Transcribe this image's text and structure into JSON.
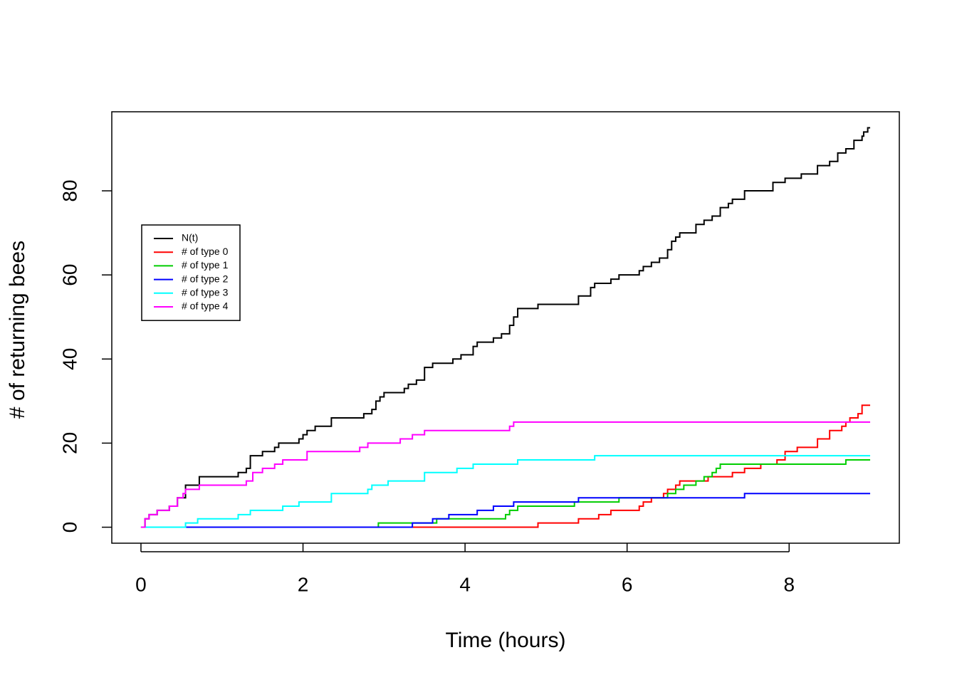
{
  "chart_data": {
    "type": "step",
    "xlabel": "Time (hours)",
    "ylabel": "# of returning bees",
    "xlim": [
      -0.36,
      9.36
    ],
    "ylim": [
      -3.8,
      98.8
    ],
    "xticks": [
      0,
      2,
      4,
      6,
      8
    ],
    "yticks": [
      0,
      20,
      40,
      60,
      80
    ],
    "grid": false,
    "legend": "left",
    "series": [
      {
        "name": "N(t)",
        "color": "#000000",
        "x": [
          0,
          0.05,
          0.1,
          0.2,
          0.35,
          0.45,
          0.55,
          0.72,
          1.2,
          1.3,
          1.35,
          1.5,
          1.65,
          1.7,
          1.95,
          2.0,
          2.05,
          2.15,
          2.35,
          2.75,
          2.85,
          2.9,
          2.95,
          3.0,
          3.25,
          3.3,
          3.4,
          3.5,
          3.6,
          3.85,
          3.95,
          4.1,
          4.15,
          4.35,
          4.45,
          4.55,
          4.6,
          4.65,
          4.9,
          5.4,
          5.55,
          5.6,
          5.8,
          5.9,
          6.15,
          6.2,
          6.3,
          6.4,
          6.5,
          6.55,
          6.6,
          6.65,
          6.85,
          6.95,
          7.05,
          7.15,
          7.25,
          7.3,
          7.45,
          7.8,
          7.95,
          8.15,
          8.35,
          8.5,
          8.6,
          8.7,
          8.8,
          8.9,
          8.92,
          8.97,
          9.0
        ],
        "values": [
          0,
          2,
          3,
          4,
          5,
          7,
          10,
          12,
          13,
          14,
          17,
          18,
          19,
          20,
          21,
          22,
          23,
          24,
          26,
          27,
          28,
          30,
          31,
          32,
          33,
          34,
          35,
          38,
          39,
          40,
          41,
          43,
          44,
          45,
          46,
          48,
          50,
          52,
          53,
          55,
          57,
          58,
          59,
          60,
          61,
          62,
          63,
          64,
          66,
          68,
          69,
          70,
          72,
          73,
          74,
          76,
          77,
          78,
          80,
          82,
          83,
          84,
          86,
          87,
          89,
          90,
          92,
          93,
          94,
          95,
          95
        ]
      },
      {
        "name": "# of type 0",
        "color": "#ff0000",
        "x": [
          0,
          4.9,
          5.4,
          5.65,
          5.8,
          6.15,
          6.2,
          6.3,
          6.45,
          6.5,
          6.6,
          6.65,
          7.0,
          7.3,
          7.45,
          7.65,
          7.85,
          7.95,
          8.1,
          8.35,
          8.5,
          8.65,
          8.7,
          8.75,
          8.85,
          8.9,
          9.0
        ],
        "values": [
          0,
          1,
          2,
          3,
          4,
          5,
          6,
          7,
          8,
          9,
          10,
          11,
          12,
          13,
          14,
          15,
          16,
          18,
          19,
          21,
          23,
          24,
          25,
          26,
          27,
          29,
          29
        ]
      },
      {
        "name": "# of type 1",
        "color": "#00cd00",
        "x": [
          0,
          2.93,
          3.65,
          4.5,
          4.55,
          4.65,
          5.35,
          5.9,
          6.5,
          6.6,
          6.7,
          6.85,
          6.95,
          7.05,
          7.1,
          7.15,
          8.7,
          9.0
        ],
        "values": [
          0,
          1,
          2,
          3,
          4,
          5,
          6,
          7,
          8,
          9,
          10,
          11,
          12,
          13,
          14,
          15,
          16,
          16
        ]
      },
      {
        "name": "# of type 2",
        "color": "#0000ff",
        "x": [
          0,
          3.35,
          3.6,
          3.8,
          4.15,
          4.35,
          4.6,
          5.4,
          7.45,
          9.0
        ],
        "values": [
          0,
          1,
          2,
          3,
          4,
          5,
          6,
          7,
          8,
          8
        ]
      },
      {
        "name": "# of type 3",
        "color": "#00ffff",
        "x": [
          0,
          0.55,
          0.7,
          1.2,
          1.35,
          1.75,
          1.95,
          2.35,
          2.8,
          2.85,
          3.05,
          3.5,
          3.9,
          4.1,
          4.65,
          5.6,
          9.0
        ],
        "values": [
          0,
          1,
          2,
          3,
          4,
          5,
          6,
          8,
          9,
          10,
          11,
          13,
          14,
          15,
          16,
          17,
          17
        ]
      },
      {
        "name": "# of type 4",
        "color": "#ff00ff",
        "x": [
          0,
          0.05,
          0.1,
          0.2,
          0.35,
          0.45,
          0.52,
          0.55,
          0.72,
          1.3,
          1.38,
          1.5,
          1.65,
          1.75,
          2.05,
          2.7,
          2.8,
          3.2,
          3.35,
          3.5,
          4.55,
          4.6,
          9.0
        ],
        "values": [
          0,
          2,
          3,
          4,
          5,
          7,
          8,
          9,
          10,
          11,
          13,
          14,
          15,
          16,
          18,
          19,
          20,
          21,
          22,
          23,
          24,
          25,
          25
        ]
      }
    ]
  }
}
